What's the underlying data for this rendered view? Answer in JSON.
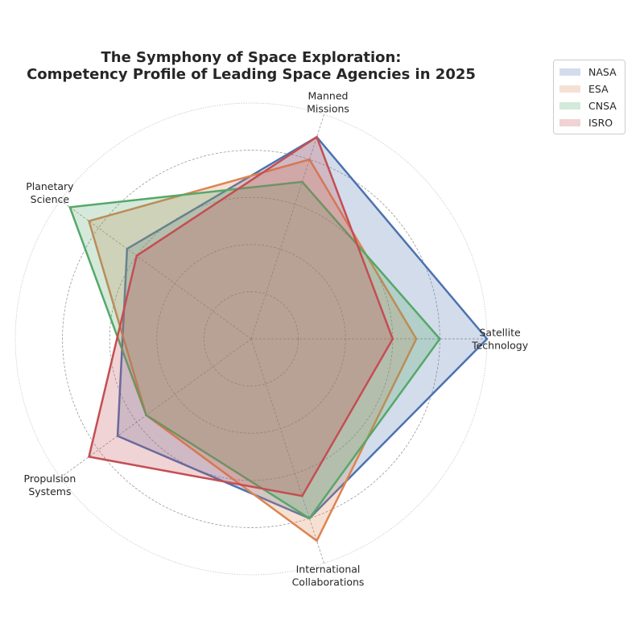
{
  "chart_data": {
    "type": "radar",
    "title": [
      "The Symphony of Space Exploration:",
      "Competency Profile of Leading Space Agencies in 2025"
    ],
    "axes": [
      [
        "Satellite",
        "Technology"
      ],
      [
        "Manned",
        "Missions"
      ],
      [
        "Planetary",
        "Science"
      ],
      [
        "Propulsion",
        "Systems"
      ],
      [
        "International",
        "Collaborations"
      ]
    ],
    "rlim": [
      0,
      100
    ],
    "grid": true,
    "legend_position": "top-right, outside",
    "series": [
      {
        "name": "NASA",
        "color": "#4c72b0",
        "values": [
          100,
          90,
          65,
          70,
          80
        ]
      },
      {
        "name": "ESA",
        "color": "#dd8452",
        "values": [
          70,
          80,
          85,
          55,
          90
        ]
      },
      {
        "name": "CNSA",
        "color": "#55a868",
        "values": [
          80,
          70,
          95,
          55,
          80
        ]
      },
      {
        "name": "ISRO",
        "color": "#c44e52",
        "values": [
          60,
          90,
          60,
          85,
          70
        ]
      }
    ]
  }
}
